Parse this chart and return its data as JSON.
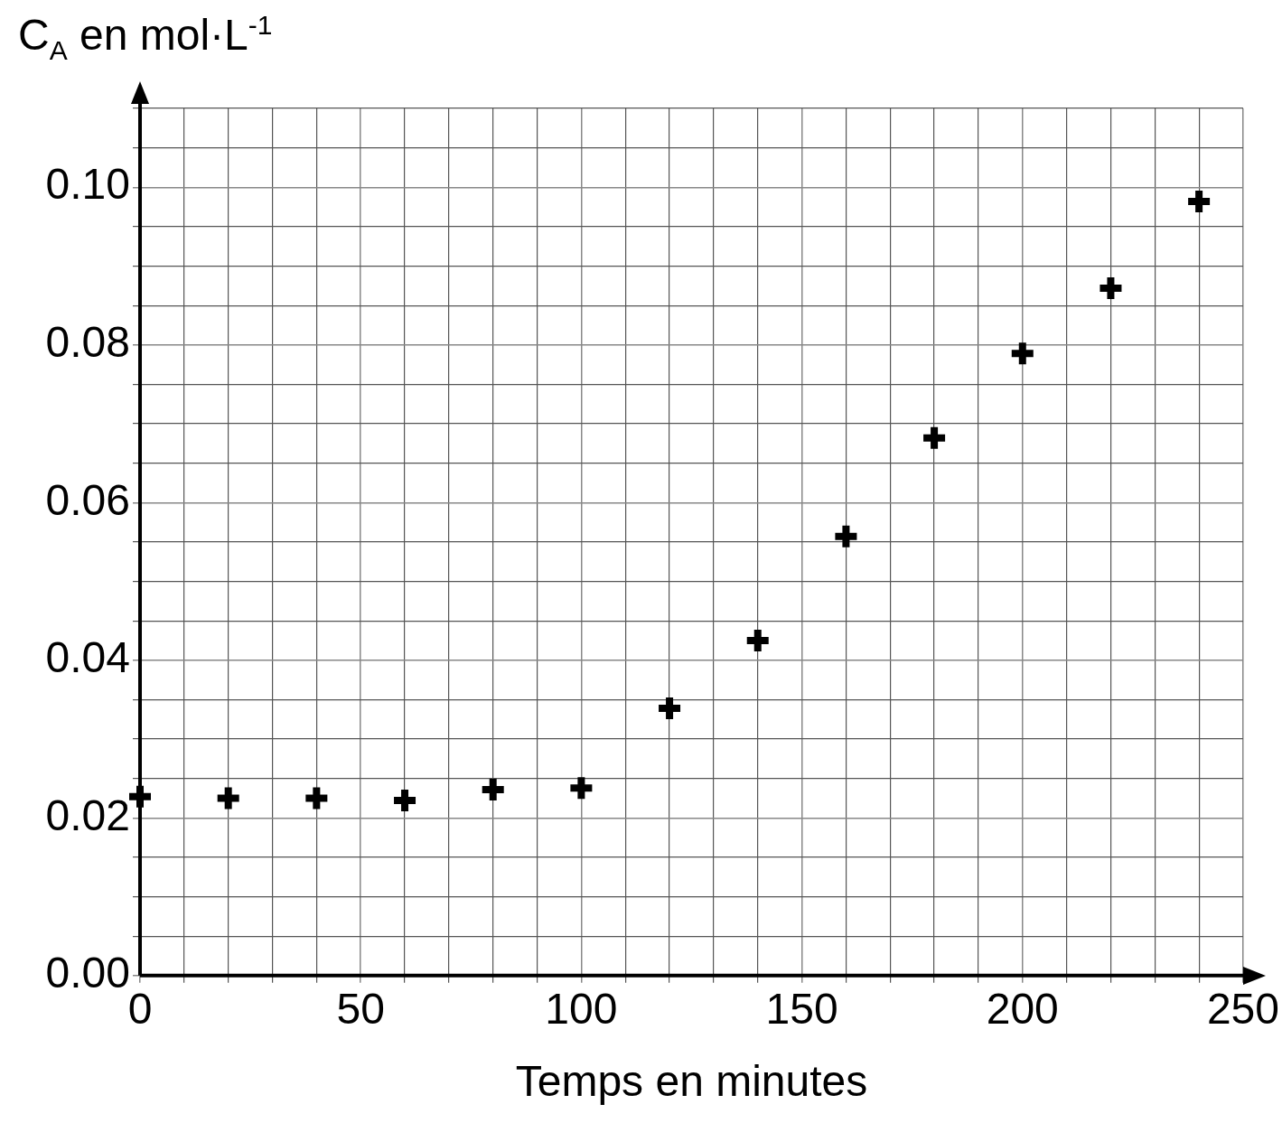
{
  "chart_data": {
    "type": "scatter",
    "xlabel": "Temps en minutes",
    "ylabel": "C$_{A}$ en mol·L$^{-1}$",
    "x": [
      0,
      20,
      40,
      60,
      80,
      100,
      120,
      140,
      160,
      180,
      200,
      220,
      240
    ],
    "series": [
      {
        "color": "#000000",
        "values": [
          0.0227,
          0.0225,
          0.0225,
          0.0222,
          0.0236,
          0.0238,
          0.0339,
          0.0425,
          0.0557,
          0.0682,
          0.0789,
          0.0872,
          0.0982
        ]
      }
    ],
    "marker": "cross",
    "grid": true,
    "legend": false,
    "xlim": [
      0,
      250
    ],
    "ylim": [
      0,
      0.11
    ],
    "xticks": [
      0,
      {
        "value": 10,
        "label": null
      },
      {
        "value": 20,
        "label": null
      },
      {
        "value": 30,
        "label": null
      },
      {
        "value": 40,
        "label": null
      },
      50,
      {
        "value": 60,
        "label": null
      },
      {
        "value": 70,
        "label": null
      },
      {
        "value": 80,
        "label": null
      },
      {
        "value": 90,
        "label": null
      },
      100,
      {
        "value": 110,
        "label": null
      },
      {
        "value": 120,
        "label": null
      },
      {
        "value": 130,
        "label": null
      },
      {
        "value": 140,
        "label": null
      },
      150,
      {
        "value": 160,
        "label": null
      },
      {
        "value": 170,
        "label": null
      },
      {
        "value": 180,
        "label": null
      },
      {
        "value": 190,
        "label": null
      },
      200,
      {
        "value": 210,
        "label": null
      },
      {
        "value": 220,
        "label": null
      },
      {
        "value": 230,
        "label": null
      },
      {
        "value": 240,
        "label": null
      },
      250
    ],
    "yticks": [
      {
        "value": 0,
        "label": "0.00"
      },
      {
        "value": 0.005,
        "label": null
      },
      {
        "value": 0.01,
        "label": null
      },
      {
        "value": 0.015,
        "label": null
      },
      {
        "value": 0.02,
        "label": "0.02"
      },
      {
        "value": 0.025,
        "label": null
      },
      {
        "value": 0.03,
        "label": null
      },
      {
        "value": 0.035,
        "label": null
      },
      {
        "value": 0.04,
        "label": "0.04"
      },
      {
        "value": 0.045,
        "label": null
      },
      {
        "value": 0.05,
        "label": null
      },
      {
        "value": 0.055,
        "label": null
      },
      {
        "value": 0.06,
        "label": "0.06"
      },
      {
        "value": 0.065,
        "label": null
      },
      {
        "value": 0.07,
        "label": null
      },
      {
        "value": 0.075,
        "label": null
      },
      {
        "value": 0.08,
        "label": "0.08"
      },
      {
        "value": 0.085,
        "label": null
      },
      {
        "value": 0.09,
        "label": null
      },
      {
        "value": 0.095,
        "label": null
      },
      {
        "value": 0.1,
        "label": "0.10"
      },
      {
        "value": 0.105,
        "label": null
      },
      {
        "value": 0.11,
        "label": null
      }
    ]
  }
}
